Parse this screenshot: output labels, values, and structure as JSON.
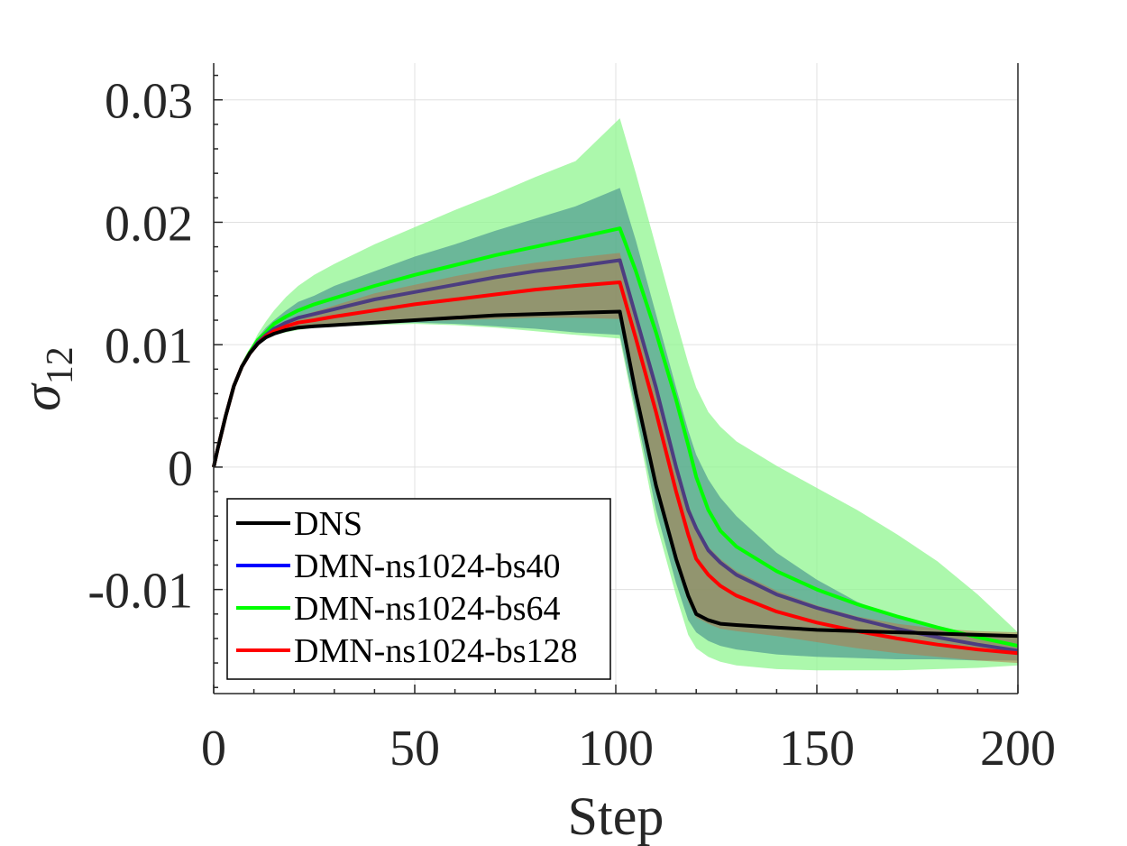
{
  "chart_data": {
    "type": "line",
    "title": "",
    "xlabel": "Step",
    "ylabel": "σ",
    "ylabel_subscript": "12",
    "xlim": [
      0,
      200
    ],
    "ylim": [
      -0.0185,
      0.033
    ],
    "xticks": [
      0,
      50,
      100,
      150,
      200
    ],
    "xtick_labels": [
      "0",
      "50",
      "100",
      "150",
      "200"
    ],
    "yticks": [
      -0.01,
      0,
      0.01,
      0.02,
      0.03
    ],
    "ytick_labels": [
      "-0.01",
      "0",
      "0.01",
      "0.02",
      "0.03"
    ],
    "grid": true,
    "legend_position": "bottom-left",
    "x": [
      0,
      1,
      3,
      5,
      7,
      9,
      11,
      13,
      15,
      18,
      21,
      25,
      30,
      40,
      50,
      60,
      70,
      80,
      90,
      101,
      105,
      110,
      115,
      118,
      120,
      123,
      126,
      130,
      140,
      150,
      160,
      170,
      180,
      190,
      200
    ],
    "series": [
      {
        "name": "DNS",
        "color": "#000000",
        "values": [
          0,
          0.0015,
          0.0042,
          0.0066,
          0.0082,
          0.0093,
          0.0101,
          0.0106,
          0.0109,
          0.0112,
          0.0114,
          0.0115,
          0.0116,
          0.0118,
          0.012,
          0.0122,
          0.0124,
          0.0125,
          0.0126,
          0.0127,
          0.006,
          -0.0015,
          -0.0075,
          -0.0105,
          -0.012,
          -0.0125,
          -0.0128,
          -0.0129,
          -0.0131,
          -0.0133,
          -0.0134,
          -0.0135,
          -0.0136,
          -0.0137,
          -0.0138
        ]
      },
      {
        "name": "DMN-ns1024-bs40",
        "color": "#0000ff",
        "line_color": "#4c3d80",
        "values": [
          0,
          0.0015,
          0.0042,
          0.0066,
          0.0082,
          0.0093,
          0.0102,
          0.0108,
          0.0113,
          0.0118,
          0.0122,
          0.0125,
          0.0129,
          0.0137,
          0.0143,
          0.0149,
          0.0155,
          0.016,
          0.0164,
          0.0169,
          0.0123,
          0.0065,
          0.0,
          -0.0035,
          -0.005,
          -0.0068,
          -0.0078,
          -0.0088,
          -0.0104,
          -0.0115,
          -0.0124,
          -0.0132,
          -0.0139,
          -0.0145,
          -0.015
        ]
      },
      {
        "name": "DMN-ns1024-bs64",
        "color": "#00ff00",
        "values": [
          0,
          0.0015,
          0.0042,
          0.0066,
          0.0082,
          0.0094,
          0.0104,
          0.011,
          0.0117,
          0.0123,
          0.0128,
          0.0133,
          0.0138,
          0.0148,
          0.0157,
          0.0165,
          0.0173,
          0.018,
          0.0187,
          0.0195,
          0.016,
          0.011,
          0.0055,
          0.0018,
          -0.0008,
          -0.0035,
          -0.0052,
          -0.0065,
          -0.0085,
          -0.01,
          -0.0112,
          -0.0122,
          -0.0131,
          -0.0139,
          -0.0146
        ]
      },
      {
        "name": "DMN-ns1024-bs128",
        "color": "#ff0000",
        "values": [
          0,
          0.0015,
          0.0042,
          0.0066,
          0.0082,
          0.0093,
          0.0101,
          0.0107,
          0.0111,
          0.0115,
          0.0118,
          0.012,
          0.0123,
          0.0128,
          0.0133,
          0.0137,
          0.0141,
          0.0145,
          0.0148,
          0.0151,
          0.0105,
          0.0045,
          -0.002,
          -0.0055,
          -0.0075,
          -0.0088,
          -0.0097,
          -0.0105,
          -0.0118,
          -0.0127,
          -0.0134,
          -0.014,
          -0.0145,
          -0.0149,
          -0.0152
        ]
      }
    ],
    "bands": [
      {
        "name": "DMN-ns1024-bs64 range",
        "color": "#8cf58c",
        "opacity": 0.72,
        "upper": [
          0,
          0.0015,
          0.0042,
          0.0066,
          0.0082,
          0.0096,
          0.0109,
          0.0119,
          0.0128,
          0.0139,
          0.0148,
          0.0157,
          0.0166,
          0.0182,
          0.0196,
          0.021,
          0.0223,
          0.0237,
          0.025,
          0.0285,
          0.024,
          0.018,
          0.012,
          0.0085,
          0.0065,
          0.0045,
          0.0033,
          0.0021,
          0.0001,
          -0.0017,
          -0.0035,
          -0.0055,
          -0.0077,
          -0.0104,
          -0.0135
        ],
        "lower": [
          0,
          0.0015,
          0.0042,
          0.0066,
          0.0082,
          0.0092,
          0.01,
          0.0105,
          0.0108,
          0.011,
          0.0112,
          0.0114,
          0.0115,
          0.0116,
          0.0117,
          0.0116,
          0.0114,
          0.0111,
          0.0108,
          0.0105,
          0.004,
          -0.0045,
          -0.0105,
          -0.0137,
          -0.0148,
          -0.0155,
          -0.0159,
          -0.0162,
          -0.0165,
          -0.0166,
          -0.0166,
          -0.0166,
          -0.0165,
          -0.0164,
          -0.0162
        ]
      },
      {
        "name": "DMN-ns1024-bs40 range",
        "color": "#3f8c8c",
        "opacity": 0.6,
        "upper": [
          0,
          0.0015,
          0.0042,
          0.0066,
          0.0082,
          0.0095,
          0.0106,
          0.0114,
          0.012,
          0.0128,
          0.0135,
          0.014,
          0.0148,
          0.016,
          0.0172,
          0.0182,
          0.0193,
          0.0203,
          0.0213,
          0.0228,
          0.0185,
          0.0125,
          0.0065,
          0.003,
          0.001,
          -0.001,
          -0.0025,
          -0.004,
          -0.007,
          -0.0092,
          -0.011,
          -0.0123,
          -0.0132,
          -0.0137,
          -0.014
        ],
        "lower": [
          0,
          0.0015,
          0.0042,
          0.0066,
          0.0082,
          0.0092,
          0.01,
          0.0105,
          0.0108,
          0.0111,
          0.0113,
          0.0114,
          0.0116,
          0.0117,
          0.0118,
          0.0117,
          0.0115,
          0.0113,
          0.011,
          0.0108,
          0.0045,
          -0.0035,
          -0.0095,
          -0.0125,
          -0.0135,
          -0.0142,
          -0.0146,
          -0.0149,
          -0.0153,
          -0.0155,
          -0.0156,
          -0.0157,
          -0.0157,
          -0.0158,
          -0.0158
        ]
      },
      {
        "name": "DMN-ns1024-bs128 range",
        "color": "#b37a4d",
        "opacity": 0.55,
        "upper": [
          0,
          0.0015,
          0.0042,
          0.0066,
          0.0082,
          0.0093,
          0.0102,
          0.0108,
          0.0113,
          0.0118,
          0.0123,
          0.0127,
          0.0132,
          0.0142,
          0.0149,
          0.0156,
          0.0162,
          0.0167,
          0.0171,
          0.0175,
          0.0128,
          0.007,
          0.0005,
          -0.003,
          -0.0048,
          -0.0065,
          -0.0075,
          -0.0085,
          -0.0101,
          -0.0113,
          -0.0122,
          -0.0128,
          -0.0132,
          -0.0134,
          -0.0135
        ],
        "lower": [
          0,
          0.0015,
          0.0042,
          0.0066,
          0.0082,
          0.0093,
          0.0101,
          0.0106,
          0.0109,
          0.0112,
          0.0114,
          0.0115,
          0.0116,
          0.0118,
          0.0119,
          0.012,
          0.0121,
          0.0122,
          0.0122,
          0.0121,
          0.0055,
          -0.002,
          -0.008,
          -0.011,
          -0.0123,
          -0.0128,
          -0.0132,
          -0.0134,
          -0.0138,
          -0.0143,
          -0.0148,
          -0.0152,
          -0.0155,
          -0.0158,
          -0.016
        ]
      }
    ]
  }
}
